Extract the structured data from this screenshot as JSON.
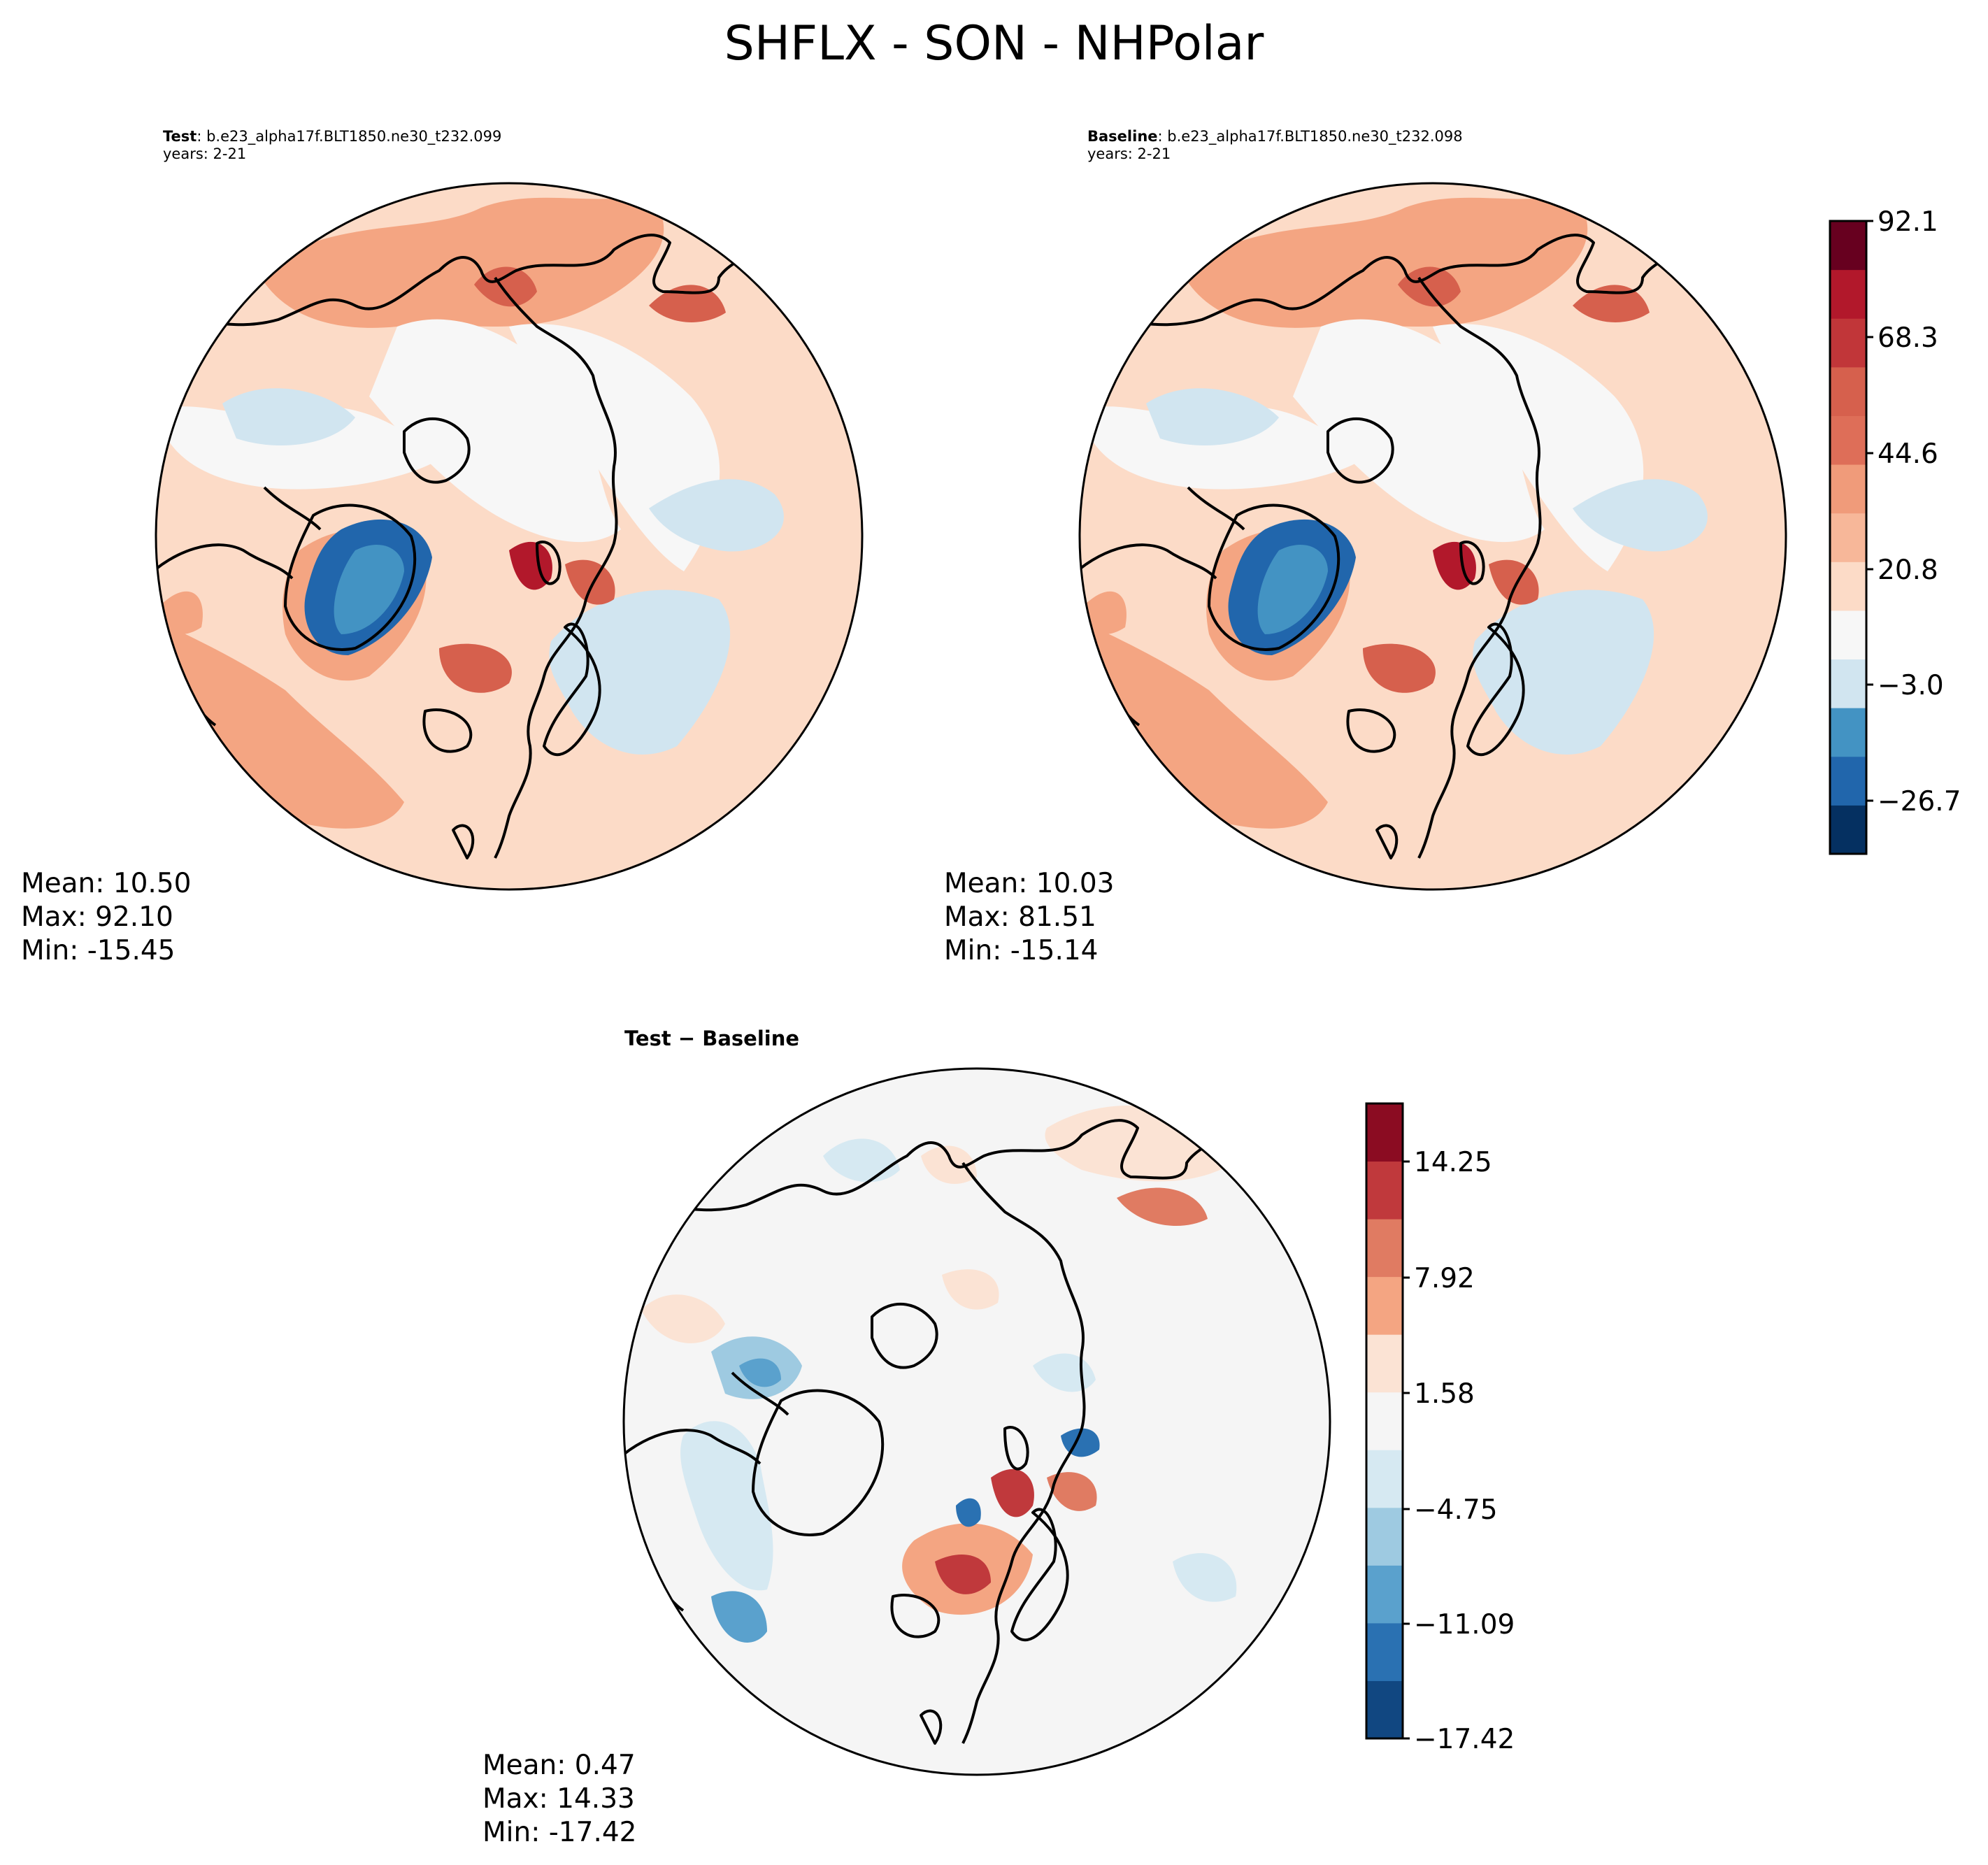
{
  "figure": {
    "title": "SHFLX - SON - NHPolar"
  },
  "panels": {
    "test": {
      "label": "Test",
      "case": ": b.e23_alpha17f.BLT1850.ne30_t232.099",
      "years": "years: 2-21",
      "mean": "Mean: 10.50",
      "max": "Max: 92.10",
      "min": "Min: -15.45"
    },
    "baseline": {
      "label": "Baseline",
      "case": ": b.e23_alpha17f.BLT1850.ne30_t232.098",
      "years": "years: 2-21",
      "mean": "Mean: 10.03",
      "max": "Max: 81.51",
      "min": "Min: -15.14"
    },
    "diff": {
      "title": "Test − Baseline",
      "mean": "Mean:  0.47",
      "max": "Max: 14.33",
      "min": "Min: -17.42"
    }
  },
  "chart_data": [
    {
      "type": "heatmap",
      "title": "Test",
      "projection": "North polar stereographic",
      "stats": {
        "mean": 10.5,
        "max": 92.1,
        "min": -15.45
      }
    },
    {
      "type": "heatmap",
      "title": "Baseline",
      "projection": "North polar stereographic",
      "stats": {
        "mean": 10.03,
        "max": 81.51,
        "min": -15.14
      }
    },
    {
      "type": "heatmap",
      "title": "Test − Baseline",
      "projection": "North polar stereographic",
      "stats": {
        "mean": 0.47,
        "max": 14.33,
        "min": -17.42
      }
    }
  ],
  "colorbars": {
    "main": {
      "ticks": [
        "92.1",
        "68.3",
        "44.6",
        "20.8",
        "−3.0",
        "−26.7"
      ],
      "colors": [
        "#053061",
        "#2166ac",
        "#4393c3",
        "#d1e5f0",
        "#f7f7f7",
        "#fcdbc7",
        "#f7b799",
        "#f09b7a",
        "#de6e58",
        "#d6604d",
        "#c13639",
        "#b2182b",
        "#67001f"
      ]
    },
    "diff": {
      "ticks": [
        "14.25",
        "7.92",
        "1.58",
        "−4.75",
        "−11.09",
        "−17.42"
      ],
      "colors": [
        "#114781",
        "#2a71b2",
        "#5aa1cd",
        "#9ecae1",
        "#d6e9f2",
        "#f5f5f5",
        "#fbe3d4",
        "#f4a582",
        "#e07b62",
        "#c0393c",
        "#8b0c22"
      ]
    }
  }
}
